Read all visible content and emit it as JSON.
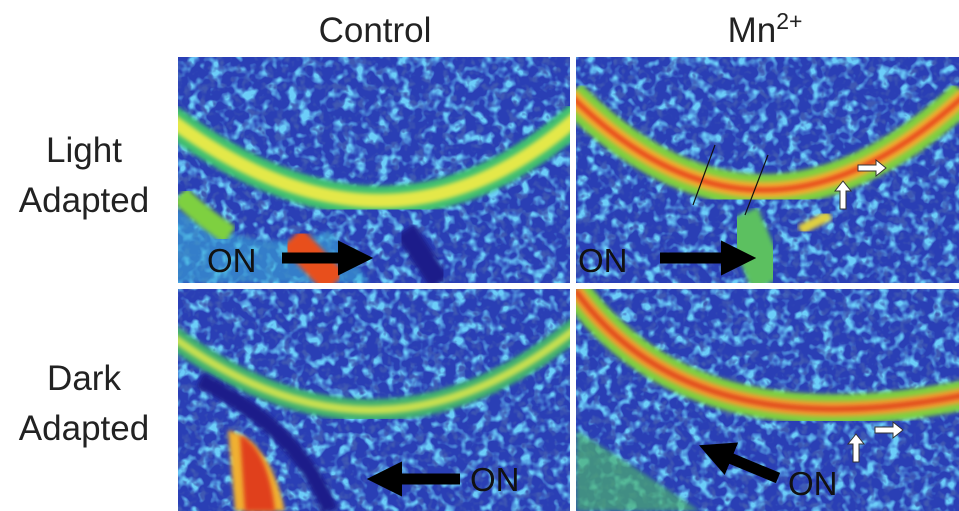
{
  "column_headers": [
    {
      "text": "Control"
    },
    {
      "base": "Mn",
      "superscript": "2+"
    }
  ],
  "row_headers": [
    {
      "lines": [
        "Light",
        "Adapted"
      ]
    },
    {
      "lines": [
        "Dark",
        "Adapted"
      ]
    }
  ],
  "panels": [
    {
      "label": "ON"
    },
    {
      "label": "ON"
    },
    {
      "label": "ON"
    },
    {
      "label": "ON"
    }
  ]
}
